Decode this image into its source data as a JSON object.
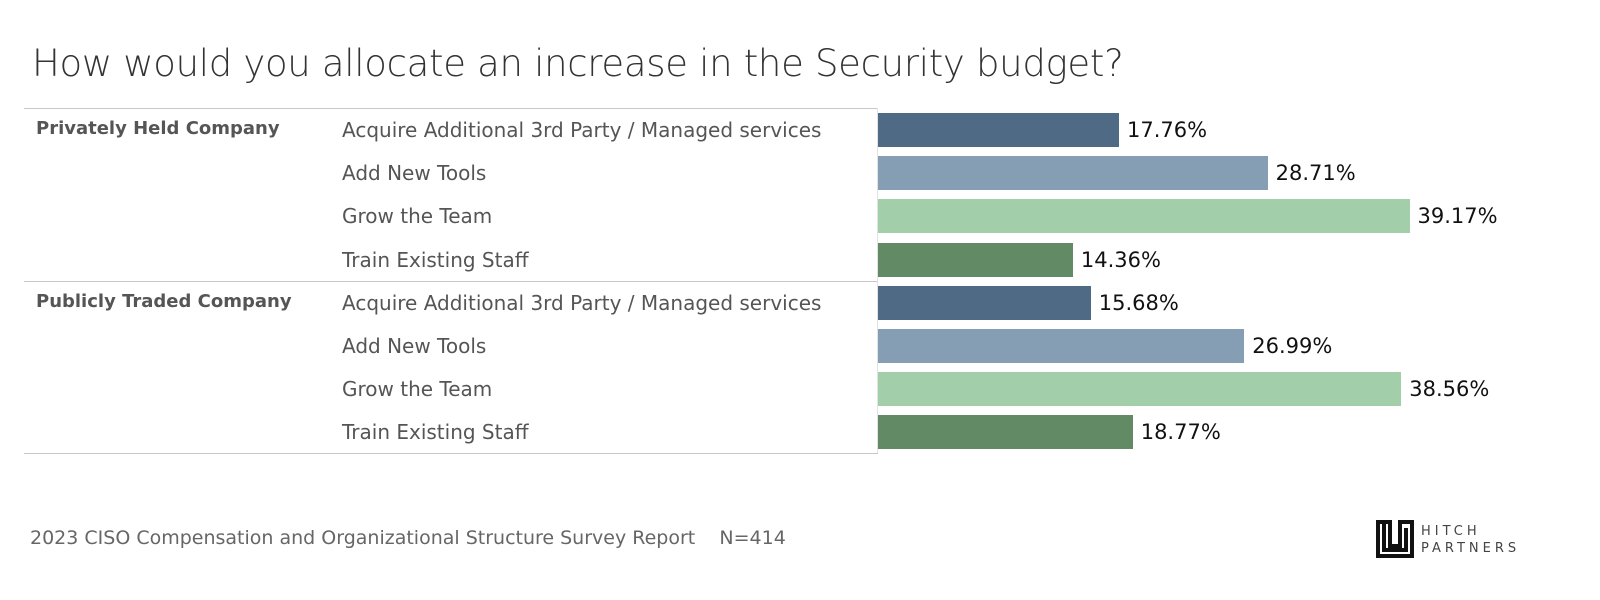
{
  "title": "How would you allocate an increase in the Security budget?",
  "footer": {
    "source": "2023 CISO Compensation and Organizational Structure Survey Report",
    "n": "N=414"
  },
  "logo": {
    "line1": "HITCH",
    "line2": "PARTNERS"
  },
  "chart_data": {
    "type": "bar",
    "orientation": "horizontal",
    "title": "How would you allocate an increase in the Security budget?",
    "groups": [
      "Privately Held Company",
      "Publicly Traded Company"
    ],
    "categories": [
      "Acquire Additional 3rd Party / Managed services",
      "Add New Tools",
      "Grow the Team",
      "Train Existing Staff"
    ],
    "colors": [
      "#4e6a84",
      "#869eb3",
      "#a2cfa9",
      "#628b65"
    ],
    "series": [
      {
        "name": "Privately Held Company",
        "values": [
          17.76,
          28.71,
          39.17,
          14.36
        ],
        "labels": [
          "17.76%",
          "28.71%",
          "39.17%",
          "14.36%"
        ]
      },
      {
        "name": "Publicly Traded Company",
        "values": [
          15.68,
          26.99,
          38.56,
          18.77
        ],
        "labels": [
          "15.68%",
          "26.99%",
          "38.56%",
          "18.77%"
        ]
      }
    ],
    "grid": false,
    "legend": "none"
  }
}
